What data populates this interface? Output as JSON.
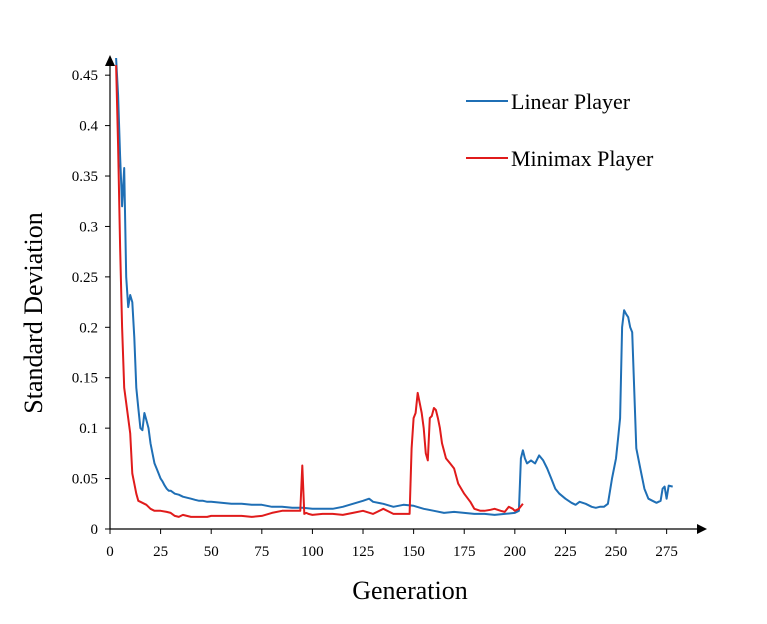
{
  "chart_data": {
    "type": "line",
    "xlabel": "Generation",
    "ylabel": "Standard Deviation",
    "xlim": [
      0,
      290
    ],
    "ylim": [
      0,
      0.47
    ],
    "xticks": [
      0,
      25,
      50,
      75,
      100,
      125,
      150,
      175,
      200,
      225,
      250,
      275
    ],
    "yticks": [
      0,
      0.05,
      0.1,
      0.15,
      0.2,
      0.25,
      0.3,
      0.35,
      0.4,
      0.45
    ],
    "ytick_labels": [
      "0",
      "0.05",
      "0.1",
      "0.15",
      "0.2",
      "0.25",
      "0.3",
      "0.35",
      "0.4",
      "0.45"
    ],
    "grid": false,
    "legend_position": "top-right",
    "series": [
      {
        "name": "Linear Player",
        "color": "#1f6fb5",
        "x": [
          3,
          4,
          5,
          6,
          7,
          8,
          9,
          10,
          11,
          12,
          13,
          14,
          15,
          16,
          17,
          18,
          19,
          20,
          21,
          22,
          23,
          24,
          25,
          26,
          27,
          28,
          29,
          30,
          32,
          34,
          36,
          38,
          40,
          42,
          44,
          46,
          48,
          50,
          55,
          60,
          65,
          70,
          75,
          80,
          85,
          90,
          95,
          100,
          105,
          110,
          115,
          120,
          125,
          128,
          130,
          135,
          140,
          145,
          150,
          155,
          160,
          165,
          170,
          175,
          180,
          185,
          190,
          195,
          200,
          202,
          203,
          204,
          205,
          206,
          208,
          210,
          212,
          214,
          216,
          218,
          220,
          222,
          225,
          228,
          230,
          232,
          235,
          238,
          240,
          242,
          244,
          246,
          248,
          249,
          250,
          251,
          252,
          253,
          254,
          255,
          256,
          257,
          258,
          260,
          262,
          264,
          266,
          268,
          270,
          272,
          273,
          274,
          275,
          276,
          278
        ],
        "y": [
          0.467,
          0.43,
          0.37,
          0.32,
          0.358,
          0.25,
          0.22,
          0.232,
          0.225,
          0.19,
          0.14,
          0.12,
          0.1,
          0.098,
          0.115,
          0.108,
          0.1,
          0.085,
          0.075,
          0.065,
          0.06,
          0.055,
          0.05,
          0.047,
          0.043,
          0.04,
          0.038,
          0.038,
          0.035,
          0.034,
          0.032,
          0.031,
          0.03,
          0.029,
          0.028,
          0.028,
          0.027,
          0.027,
          0.026,
          0.025,
          0.025,
          0.024,
          0.024,
          0.022,
          0.022,
          0.021,
          0.021,
          0.02,
          0.02,
          0.02,
          0.022,
          0.025,
          0.028,
          0.03,
          0.027,
          0.025,
          0.022,
          0.024,
          0.023,
          0.02,
          0.018,
          0.016,
          0.017,
          0.016,
          0.015,
          0.015,
          0.014,
          0.015,
          0.016,
          0.018,
          0.07,
          0.078,
          0.07,
          0.065,
          0.068,
          0.065,
          0.073,
          0.068,
          0.06,
          0.05,
          0.04,
          0.035,
          0.03,
          0.026,
          0.024,
          0.027,
          0.025,
          0.022,
          0.021,
          0.022,
          0.022,
          0.025,
          0.05,
          0.06,
          0.07,
          0.09,
          0.11,
          0.2,
          0.217,
          0.213,
          0.21,
          0.2,
          0.195,
          0.08,
          0.06,
          0.04,
          0.03,
          0.028,
          0.026,
          0.028,
          0.04,
          0.042,
          0.03,
          0.043,
          0.042
        ]
      },
      {
        "name": "Minimax Player",
        "color": "#e01b1b",
        "x": [
          3,
          4,
          5,
          6,
          7,
          8,
          9,
          10,
          11,
          12,
          13,
          14,
          15,
          16,
          17,
          18,
          20,
          22,
          25,
          28,
          30,
          32,
          34,
          36,
          38,
          40,
          42,
          45,
          48,
          50,
          55,
          60,
          65,
          70,
          75,
          80,
          85,
          90,
          94,
          95,
          96,
          97,
          98,
          100,
          105,
          110,
          115,
          120,
          125,
          130,
          135,
          140,
          145,
          148,
          149,
          150,
          151,
          152,
          153,
          154,
          155,
          156,
          157,
          158,
          159,
          160,
          161,
          162,
          163,
          164,
          166,
          168,
          170,
          172,
          175,
          178,
          180,
          183,
          185,
          188,
          190,
          193,
          195,
          197,
          199,
          200,
          202,
          204
        ],
        "y": [
          0.46,
          0.38,
          0.28,
          0.2,
          0.14,
          0.125,
          0.11,
          0.095,
          0.055,
          0.045,
          0.035,
          0.028,
          0.027,
          0.026,
          0.025,
          0.024,
          0.02,
          0.018,
          0.018,
          0.017,
          0.016,
          0.013,
          0.012,
          0.014,
          0.013,
          0.012,
          0.012,
          0.012,
          0.012,
          0.013,
          0.013,
          0.013,
          0.013,
          0.012,
          0.013,
          0.016,
          0.018,
          0.018,
          0.018,
          0.063,
          0.015,
          0.016,
          0.015,
          0.014,
          0.015,
          0.015,
          0.014,
          0.016,
          0.018,
          0.015,
          0.02,
          0.015,
          0.015,
          0.015,
          0.08,
          0.11,
          0.115,
          0.135,
          0.125,
          0.115,
          0.1,
          0.075,
          0.068,
          0.11,
          0.112,
          0.12,
          0.118,
          0.11,
          0.1,
          0.085,
          0.07,
          0.065,
          0.06,
          0.045,
          0.035,
          0.027,
          0.02,
          0.018,
          0.018,
          0.019,
          0.02,
          0.018,
          0.017,
          0.022,
          0.02,
          0.018,
          0.02,
          0.025
        ]
      }
    ]
  }
}
